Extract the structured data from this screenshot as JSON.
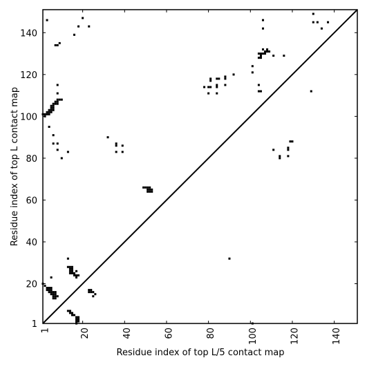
{
  "chart_data": {
    "type": "scatter",
    "title": "",
    "xlabel": "Residue index of top L/5 contact map",
    "ylabel": "Residue index of top L contact map",
    "xlim": [
      1,
      151
    ],
    "ylim": [
      1,
      151
    ],
    "xticks": [
      1,
      20,
      40,
      60,
      80,
      100,
      120,
      140
    ],
    "yticks": [
      1,
      20,
      40,
      60,
      80,
      100,
      120,
      140
    ],
    "xtick_labels": [
      "1",
      "20",
      "40",
      "60",
      "80",
      "100",
      "120",
      "140"
    ],
    "ytick_labels": [
      "1",
      "20",
      "40",
      "60",
      "80",
      "100",
      "120",
      "140"
    ],
    "diagonal_line": true,
    "grid": false,
    "legend": null,
    "marker_color": "#000000",
    "upper_triangle_contacts": [
      [
        3,
        146
      ],
      [
        7,
        134
      ],
      [
        8,
        134
      ],
      [
        9,
        135
      ],
      [
        16,
        139
      ],
      [
        18,
        143
      ],
      [
        20,
        147
      ],
      [
        23,
        143
      ],
      [
        8,
        115
      ],
      [
        8,
        111
      ],
      [
        8,
        108
      ],
      [
        9,
        108
      ],
      [
        10,
        108
      ],
      [
        7,
        107
      ],
      [
        8,
        107
      ],
      [
        6,
        106
      ],
      [
        7,
        106
      ],
      [
        8,
        106
      ],
      [
        5,
        105
      ],
      [
        6,
        105
      ],
      [
        5,
        104
      ],
      [
        6,
        104
      ],
      [
        4,
        103
      ],
      [
        5,
        103
      ],
      [
        6,
        103
      ],
      [
        3,
        102
      ],
      [
        4,
        102
      ],
      [
        5,
        102
      ],
      [
        3,
        101
      ],
      [
        4,
        101
      ],
      [
        2,
        101
      ],
      [
        1,
        101
      ],
      [
        2,
        100
      ],
      [
        4,
        95
      ],
      [
        6,
        91
      ],
      [
        6,
        87
      ],
      [
        8,
        87
      ],
      [
        8,
        84
      ],
      [
        10,
        80
      ],
      [
        13,
        83
      ],
      [
        32,
        90
      ],
      [
        36,
        87
      ],
      [
        36,
        86
      ],
      [
        39,
        86
      ],
      [
        36,
        83
      ],
      [
        39,
        83
      ],
      [
        49,
        66
      ],
      [
        50,
        66
      ],
      [
        51,
        66
      ],
      [
        52,
        66
      ],
      [
        51,
        65
      ],
      [
        52,
        65
      ],
      [
        53,
        65
      ],
      [
        51,
        64
      ],
      [
        52,
        64
      ],
      [
        53,
        64
      ],
      [
        78,
        114
      ],
      [
        80,
        114
      ],
      [
        81,
        114
      ],
      [
        80,
        111
      ],
      [
        81,
        117
      ],
      [
        81,
        118
      ],
      [
        84,
        118
      ],
      [
        85,
        118
      ],
      [
        84,
        115
      ],
      [
        84,
        114
      ],
      [
        84,
        111
      ],
      [
        88,
        118
      ],
      [
        88,
        119
      ],
      [
        88,
        115
      ],
      [
        92,
        120
      ],
      [
        101,
        124
      ],
      [
        101,
        121
      ],
      [
        104,
        115
      ],
      [
        104,
        112
      ],
      [
        105,
        112
      ],
      [
        104,
        128
      ],
      [
        105,
        128
      ],
      [
        105,
        129
      ],
      [
        104,
        130
      ],
      [
        105,
        130
      ],
      [
        106,
        130
      ],
      [
        107,
        130
      ],
      [
        107,
        131
      ],
      [
        108,
        131
      ],
      [
        109,
        131
      ],
      [
        108,
        132
      ],
      [
        106,
        132
      ],
      [
        106,
        142
      ],
      [
        106,
        146
      ],
      [
        111,
        129
      ],
      [
        116,
        129
      ],
      [
        111,
        84
      ],
      [
        114,
        81
      ],
      [
        114,
        80
      ],
      [
        118,
        85
      ],
      [
        118,
        84
      ],
      [
        118,
        81
      ],
      [
        119,
        88
      ],
      [
        120,
        88
      ],
      [
        129,
        112
      ],
      [
        130,
        149
      ],
      [
        130,
        145
      ],
      [
        132,
        145
      ],
      [
        134,
        142
      ],
      [
        137,
        145
      ]
    ],
    "lower_triangle_contacts": [
      [
        1,
        20
      ],
      [
        2,
        19
      ],
      [
        3,
        18
      ],
      [
        3,
        17
      ],
      [
        4,
        18
      ],
      [
        5,
        18
      ],
      [
        4,
        17
      ],
      [
        5,
        17
      ],
      [
        4,
        16
      ],
      [
        5,
        16
      ],
      [
        6,
        16
      ],
      [
        7,
        16
      ],
      [
        5,
        15
      ],
      [
        6,
        15
      ],
      [
        7,
        15
      ],
      [
        6,
        14
      ],
      [
        7,
        14
      ],
      [
        8,
        14
      ],
      [
        6,
        13
      ],
      [
        7,
        13
      ],
      [
        5,
        23
      ],
      [
        13,
        32
      ],
      [
        13,
        28
      ],
      [
        14,
        28
      ],
      [
        15,
        28
      ],
      [
        14,
        27
      ],
      [
        15,
        27
      ],
      [
        14,
        26
      ],
      [
        15,
        26
      ],
      [
        17,
        26
      ],
      [
        14,
        25
      ],
      [
        15,
        25
      ],
      [
        16,
        25
      ],
      [
        16,
        24
      ],
      [
        17,
        24
      ],
      [
        18,
        24
      ],
      [
        17,
        23
      ],
      [
        13,
        7
      ],
      [
        14,
        7
      ],
      [
        14,
        6
      ],
      [
        15,
        6
      ],
      [
        15,
        5
      ],
      [
        16,
        5
      ],
      [
        17,
        4
      ],
      [
        18,
        4
      ],
      [
        17,
        3
      ],
      [
        18,
        3
      ],
      [
        17,
        2
      ],
      [
        18,
        2
      ],
      [
        17,
        1
      ],
      [
        23,
        17
      ],
      [
        24,
        17
      ],
      [
        23,
        16
      ],
      [
        24,
        16
      ],
      [
        25,
        16
      ],
      [
        26,
        15
      ],
      [
        25,
        14
      ],
      [
        90,
        32
      ],
      [
        101,
        1
      ]
    ]
  }
}
